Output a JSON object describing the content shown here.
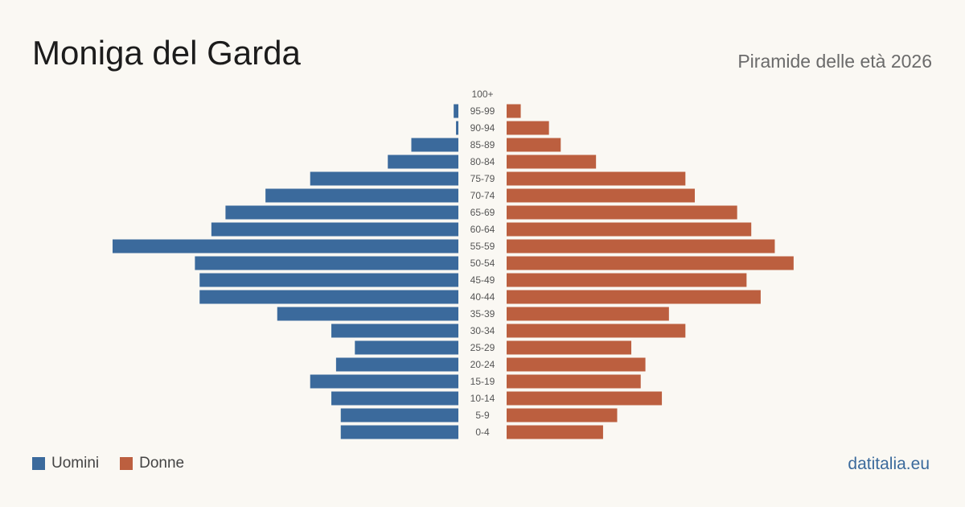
{
  "header": {
    "title": "Moniga del Garda",
    "subtitle": "Piramide delle età 2026"
  },
  "legend": {
    "male_label": "Uomini",
    "female_label": "Donne",
    "male_color": "#3b6a9c",
    "female_color": "#bc5f3f"
  },
  "footer": {
    "source": "datitalia.eu"
  },
  "chart_data": {
    "type": "bar",
    "orientation": "horizontal-pyramid",
    "categories": [
      "100+",
      "95-99",
      "90-94",
      "85-89",
      "80-84",
      "75-79",
      "70-74",
      "65-69",
      "60-64",
      "55-59",
      "50-54",
      "45-49",
      "40-44",
      "35-39",
      "30-34",
      "25-29",
      "20-24",
      "15-19",
      "10-14",
      "5-9",
      "0-4"
    ],
    "series": [
      {
        "name": "Uomini",
        "values": [
          0,
          2,
          1,
          20,
          30,
          63,
          82,
          99,
          105,
          147,
          112,
          110,
          110,
          77,
          54,
          44,
          52,
          63,
          54,
          50,
          50
        ]
      },
      {
        "name": "Donne",
        "values": [
          0,
          6,
          18,
          23,
          38,
          76,
          80,
          98,
          104,
          114,
          122,
          102,
          108,
          69,
          76,
          53,
          59,
          57,
          66,
          47,
          41
        ]
      }
    ],
    "legend_position": "bottom-left",
    "grid": false
  }
}
